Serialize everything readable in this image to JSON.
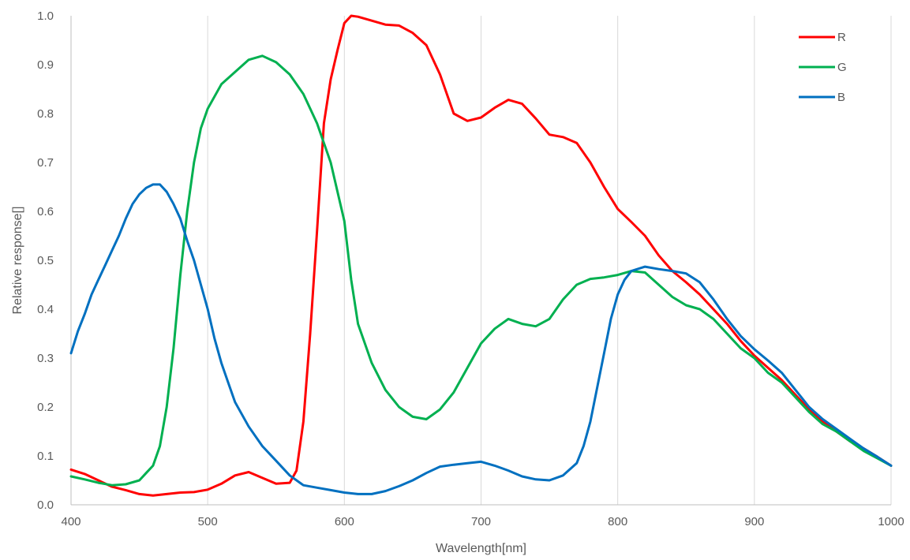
{
  "chart_data": {
    "type": "line",
    "title": "",
    "xlabel": "Wavelength[nm]",
    "ylabel": "Relative response[]",
    "xlim": [
      400,
      1000
    ],
    "ylim": [
      0,
      1
    ],
    "x_ticks": [
      "400",
      "500",
      "600",
      "700",
      "800",
      "900",
      "1000"
    ],
    "y_ticks": [
      "0.0",
      "0.1",
      "0.2",
      "0.3",
      "0.4",
      "0.5",
      "0.6",
      "0.7",
      "0.8",
      "0.9",
      "1.0"
    ],
    "grid": "vertical",
    "legend_position": "top-right",
    "series": [
      {
        "name": "R",
        "color": "#ff0000",
        "points": [
          [
            400,
            0.072
          ],
          [
            410,
            0.063
          ],
          [
            420,
            0.05
          ],
          [
            430,
            0.037
          ],
          [
            440,
            0.03
          ],
          [
            450,
            0.022
          ],
          [
            460,
            0.019
          ],
          [
            470,
            0.022
          ],
          [
            480,
            0.025
          ],
          [
            490,
            0.026
          ],
          [
            500,
            0.031
          ],
          [
            510,
            0.043
          ],
          [
            520,
            0.06
          ],
          [
            530,
            0.067
          ],
          [
            540,
            0.055
          ],
          [
            550,
            0.043
          ],
          [
            560,
            0.045
          ],
          [
            565,
            0.07
          ],
          [
            570,
            0.17
          ],
          [
            575,
            0.35
          ],
          [
            580,
            0.56
          ],
          [
            585,
            0.78
          ],
          [
            590,
            0.87
          ],
          [
            595,
            0.93
          ],
          [
            600,
            0.985
          ],
          [
            605,
            1.0
          ],
          [
            610,
            0.998
          ],
          [
            620,
            0.99
          ],
          [
            630,
            0.982
          ],
          [
            640,
            0.98
          ],
          [
            650,
            0.965
          ],
          [
            660,
            0.94
          ],
          [
            670,
            0.88
          ],
          [
            680,
            0.8
          ],
          [
            690,
            0.785
          ],
          [
            700,
            0.792
          ],
          [
            710,
            0.812
          ],
          [
            720,
            0.828
          ],
          [
            730,
            0.82
          ],
          [
            740,
            0.79
          ],
          [
            750,
            0.757
          ],
          [
            760,
            0.752
          ],
          [
            770,
            0.74
          ],
          [
            780,
            0.7
          ],
          [
            790,
            0.65
          ],
          [
            800,
            0.605
          ],
          [
            810,
            0.578
          ],
          [
            820,
            0.55
          ],
          [
            830,
            0.51
          ],
          [
            840,
            0.478
          ],
          [
            850,
            0.455
          ],
          [
            860,
            0.43
          ],
          [
            870,
            0.4
          ],
          [
            880,
            0.37
          ],
          [
            890,
            0.335
          ],
          [
            900,
            0.305
          ],
          [
            910,
            0.28
          ],
          [
            920,
            0.255
          ],
          [
            930,
            0.225
          ],
          [
            940,
            0.195
          ],
          [
            950,
            0.17
          ],
          [
            960,
            0.15
          ],
          [
            970,
            0.13
          ],
          [
            980,
            0.115
          ],
          [
            990,
            0.098
          ],
          [
            1000,
            0.08
          ]
        ]
      },
      {
        "name": "G",
        "color": "#00b050",
        "points": [
          [
            400,
            0.058
          ],
          [
            410,
            0.052
          ],
          [
            420,
            0.045
          ],
          [
            430,
            0.04
          ],
          [
            440,
            0.042
          ],
          [
            450,
            0.05
          ],
          [
            455,
            0.065
          ],
          [
            460,
            0.08
          ],
          [
            465,
            0.12
          ],
          [
            470,
            0.2
          ],
          [
            475,
            0.32
          ],
          [
            480,
            0.47
          ],
          [
            485,
            0.6
          ],
          [
            490,
            0.7
          ],
          [
            495,
            0.77
          ],
          [
            500,
            0.81
          ],
          [
            510,
            0.86
          ],
          [
            520,
            0.885
          ],
          [
            530,
            0.91
          ],
          [
            540,
            0.918
          ],
          [
            550,
            0.905
          ],
          [
            560,
            0.88
          ],
          [
            570,
            0.84
          ],
          [
            580,
            0.78
          ],
          [
            590,
            0.7
          ],
          [
            600,
            0.58
          ],
          [
            605,
            0.46
          ],
          [
            610,
            0.37
          ],
          [
            620,
            0.29
          ],
          [
            630,
            0.235
          ],
          [
            640,
            0.2
          ],
          [
            650,
            0.18
          ],
          [
            660,
            0.175
          ],
          [
            670,
            0.195
          ],
          [
            680,
            0.23
          ],
          [
            690,
            0.28
          ],
          [
            700,
            0.33
          ],
          [
            710,
            0.36
          ],
          [
            720,
            0.38
          ],
          [
            730,
            0.37
          ],
          [
            740,
            0.365
          ],
          [
            750,
            0.38
          ],
          [
            760,
            0.42
          ],
          [
            770,
            0.45
          ],
          [
            780,
            0.462
          ],
          [
            790,
            0.465
          ],
          [
            800,
            0.47
          ],
          [
            810,
            0.478
          ],
          [
            820,
            0.475
          ],
          [
            830,
            0.45
          ],
          [
            840,
            0.425
          ],
          [
            850,
            0.408
          ],
          [
            860,
            0.4
          ],
          [
            870,
            0.38
          ],
          [
            880,
            0.35
          ],
          [
            890,
            0.32
          ],
          [
            900,
            0.3
          ],
          [
            910,
            0.27
          ],
          [
            920,
            0.25
          ],
          [
            930,
            0.22
          ],
          [
            940,
            0.19
          ],
          [
            950,
            0.165
          ],
          [
            960,
            0.15
          ],
          [
            970,
            0.13
          ],
          [
            980,
            0.11
          ],
          [
            990,
            0.095
          ],
          [
            1000,
            0.08
          ]
        ]
      },
      {
        "name": "B",
        "color": "#0070c0",
        "points": [
          [
            400,
            0.31
          ],
          [
            405,
            0.355
          ],
          [
            410,
            0.39
          ],
          [
            415,
            0.43
          ],
          [
            420,
            0.46
          ],
          [
            425,
            0.49
          ],
          [
            430,
            0.52
          ],
          [
            435,
            0.55
          ],
          [
            440,
            0.585
          ],
          [
            445,
            0.615
          ],
          [
            450,
            0.635
          ],
          [
            455,
            0.648
          ],
          [
            460,
            0.655
          ],
          [
            465,
            0.655
          ],
          [
            470,
            0.64
          ],
          [
            475,
            0.615
          ],
          [
            480,
            0.585
          ],
          [
            485,
            0.54
          ],
          [
            490,
            0.5
          ],
          [
            495,
            0.45
          ],
          [
            500,
            0.4
          ],
          [
            505,
            0.34
          ],
          [
            510,
            0.29
          ],
          [
            515,
            0.25
          ],
          [
            520,
            0.21
          ],
          [
            530,
            0.16
          ],
          [
            540,
            0.12
          ],
          [
            550,
            0.09
          ],
          [
            560,
            0.06
          ],
          [
            570,
            0.04
          ],
          [
            580,
            0.035
          ],
          [
            590,
            0.03
          ],
          [
            600,
            0.025
          ],
          [
            610,
            0.022
          ],
          [
            620,
            0.022
          ],
          [
            630,
            0.028
          ],
          [
            640,
            0.038
          ],
          [
            650,
            0.05
          ],
          [
            660,
            0.065
          ],
          [
            670,
            0.078
          ],
          [
            680,
            0.082
          ],
          [
            690,
            0.085
          ],
          [
            700,
            0.088
          ],
          [
            710,
            0.08
          ],
          [
            720,
            0.07
          ],
          [
            730,
            0.058
          ],
          [
            740,
            0.052
          ],
          [
            750,
            0.05
          ],
          [
            760,
            0.06
          ],
          [
            770,
            0.085
          ],
          [
            775,
            0.12
          ],
          [
            780,
            0.17
          ],
          [
            785,
            0.24
          ],
          [
            790,
            0.31
          ],
          [
            795,
            0.38
          ],
          [
            800,
            0.43
          ],
          [
            805,
            0.46
          ],
          [
            810,
            0.478
          ],
          [
            820,
            0.487
          ],
          [
            830,
            0.482
          ],
          [
            840,
            0.478
          ],
          [
            850,
            0.473
          ],
          [
            860,
            0.455
          ],
          [
            870,
            0.42
          ],
          [
            880,
            0.38
          ],
          [
            890,
            0.345
          ],
          [
            900,
            0.318
          ],
          [
            910,
            0.295
          ],
          [
            920,
            0.27
          ],
          [
            930,
            0.235
          ],
          [
            940,
            0.2
          ],
          [
            950,
            0.175
          ],
          [
            960,
            0.155
          ],
          [
            970,
            0.135
          ],
          [
            980,
            0.115
          ],
          [
            990,
            0.098
          ],
          [
            1000,
            0.08
          ]
        ]
      }
    ]
  }
}
